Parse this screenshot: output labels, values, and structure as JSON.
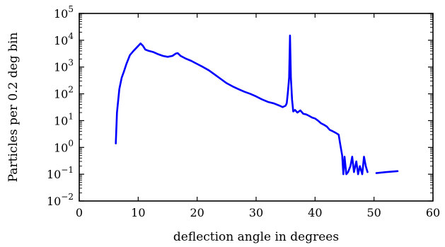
{
  "chart_data": {
    "type": "line",
    "title": "",
    "xlabel": "deflection angle in degrees",
    "ylabel": "Particles per 0.2 deg bin",
    "xlim": [
      0,
      60
    ],
    "ylim": [
      0.01,
      100000
    ],
    "yscale": "log",
    "grid": false,
    "x_ticks": [
      0,
      10,
      20,
      30,
      40,
      50,
      60
    ],
    "x_tick_labels": [
      "0",
      "10",
      "20",
      "30",
      "40",
      "50",
      "60"
    ],
    "y_ticks": [
      0.01,
      0.1,
      1,
      10,
      100,
      1000,
      10000,
      100000
    ],
    "y_tick_labels": [
      {
        "base": "10",
        "exp": "−2"
      },
      {
        "base": "10",
        "exp": "−1"
      },
      {
        "base": "10",
        "exp": "0"
      },
      {
        "base": "10",
        "exp": "1"
      },
      {
        "base": "10",
        "exp": "2"
      },
      {
        "base": "10",
        "exp": "3"
      },
      {
        "base": "10",
        "exp": "4"
      },
      {
        "base": "10",
        "exp": "5"
      }
    ],
    "series": [
      {
        "color": "#0000ff",
        "segments": [
          [
            [
              6.2,
              1.4
            ],
            [
              6.4,
              20
            ],
            [
              6.8,
              150
            ],
            [
              7.2,
              400
            ],
            [
              7.6,
              700
            ],
            [
              8.0,
              1300
            ],
            [
              8.6,
              2800
            ],
            [
              9.2,
              4000
            ],
            [
              9.8,
              5500
            ],
            [
              10.4,
              7600
            ],
            [
              10.8,
              6200
            ],
            [
              11.2,
              4500
            ],
            [
              11.8,
              4000
            ],
            [
              12.6,
              3600
            ],
            [
              13.4,
              3000
            ],
            [
              14.2,
              2600
            ],
            [
              15.0,
              2400
            ],
            [
              15.8,
              2600
            ],
            [
              16.4,
              3200
            ],
            [
              16.7,
              3300
            ],
            [
              17.2,
              2600
            ],
            [
              18.0,
              2100
            ],
            [
              19.0,
              1700
            ],
            [
              20.0,
              1300
            ],
            [
              21.0,
              1000
            ],
            [
              22.0,
              750
            ],
            [
              23.0,
              520
            ],
            [
              24.0,
              360
            ],
            [
              25.0,
              250
            ],
            [
              26.0,
              190
            ],
            [
              27.0,
              150
            ],
            [
              28.0,
              120
            ],
            [
              29.0,
              100
            ],
            [
              30.0,
              80
            ],
            [
              31.0,
              62
            ],
            [
              32.0,
              50
            ],
            [
              33.0,
              44
            ],
            [
              34.0,
              36
            ],
            [
              34.5,
              32
            ],
            [
              35.0,
              36
            ],
            [
              35.2,
              45
            ],
            [
              35.4,
              120
            ],
            [
              35.6,
              400
            ],
            [
              35.75,
              15000
            ],
            [
              35.9,
              400
            ],
            [
              36.1,
              60
            ],
            [
              36.3,
              22
            ],
            [
              36.6,
              25
            ],
            [
              37.0,
              20
            ],
            [
              37.5,
              24
            ],
            [
              38.0,
              18
            ],
            [
              38.5,
              17
            ],
            [
              39.0,
              15
            ],
            [
              39.5,
              13
            ],
            [
              40.0,
              12
            ],
            [
              40.5,
              10
            ],
            [
              41.0,
              8
            ],
            [
              41.5,
              7
            ],
            [
              42.0,
              6
            ],
            [
              42.5,
              4.5
            ],
            [
              43.0,
              4
            ],
            [
              43.5,
              3.5
            ],
            [
              44.0,
              3
            ],
            [
              44.3,
              1.2
            ],
            [
              44.6,
              0.5
            ],
            [
              44.8,
              0.1
            ],
            [
              45.0,
              0.45
            ],
            [
              45.3,
              0.1
            ],
            [
              45.6,
              0.12
            ],
            [
              46.0,
              0.2
            ],
            [
              46.3,
              0.45
            ],
            [
              46.6,
              0.12
            ],
            [
              47.0,
              0.3
            ],
            [
              47.3,
              0.1
            ],
            [
              47.6,
              0.2
            ],
            [
              48.0,
              0.1
            ],
            [
              48.3,
              0.45
            ],
            [
              48.6,
              0.2
            ],
            [
              48.9,
              0.12
            ]
          ],
          [
            [
              50.4,
              0.11
            ],
            [
              52.0,
              0.12
            ],
            [
              54.0,
              0.13
            ]
          ]
        ]
      }
    ]
  }
}
